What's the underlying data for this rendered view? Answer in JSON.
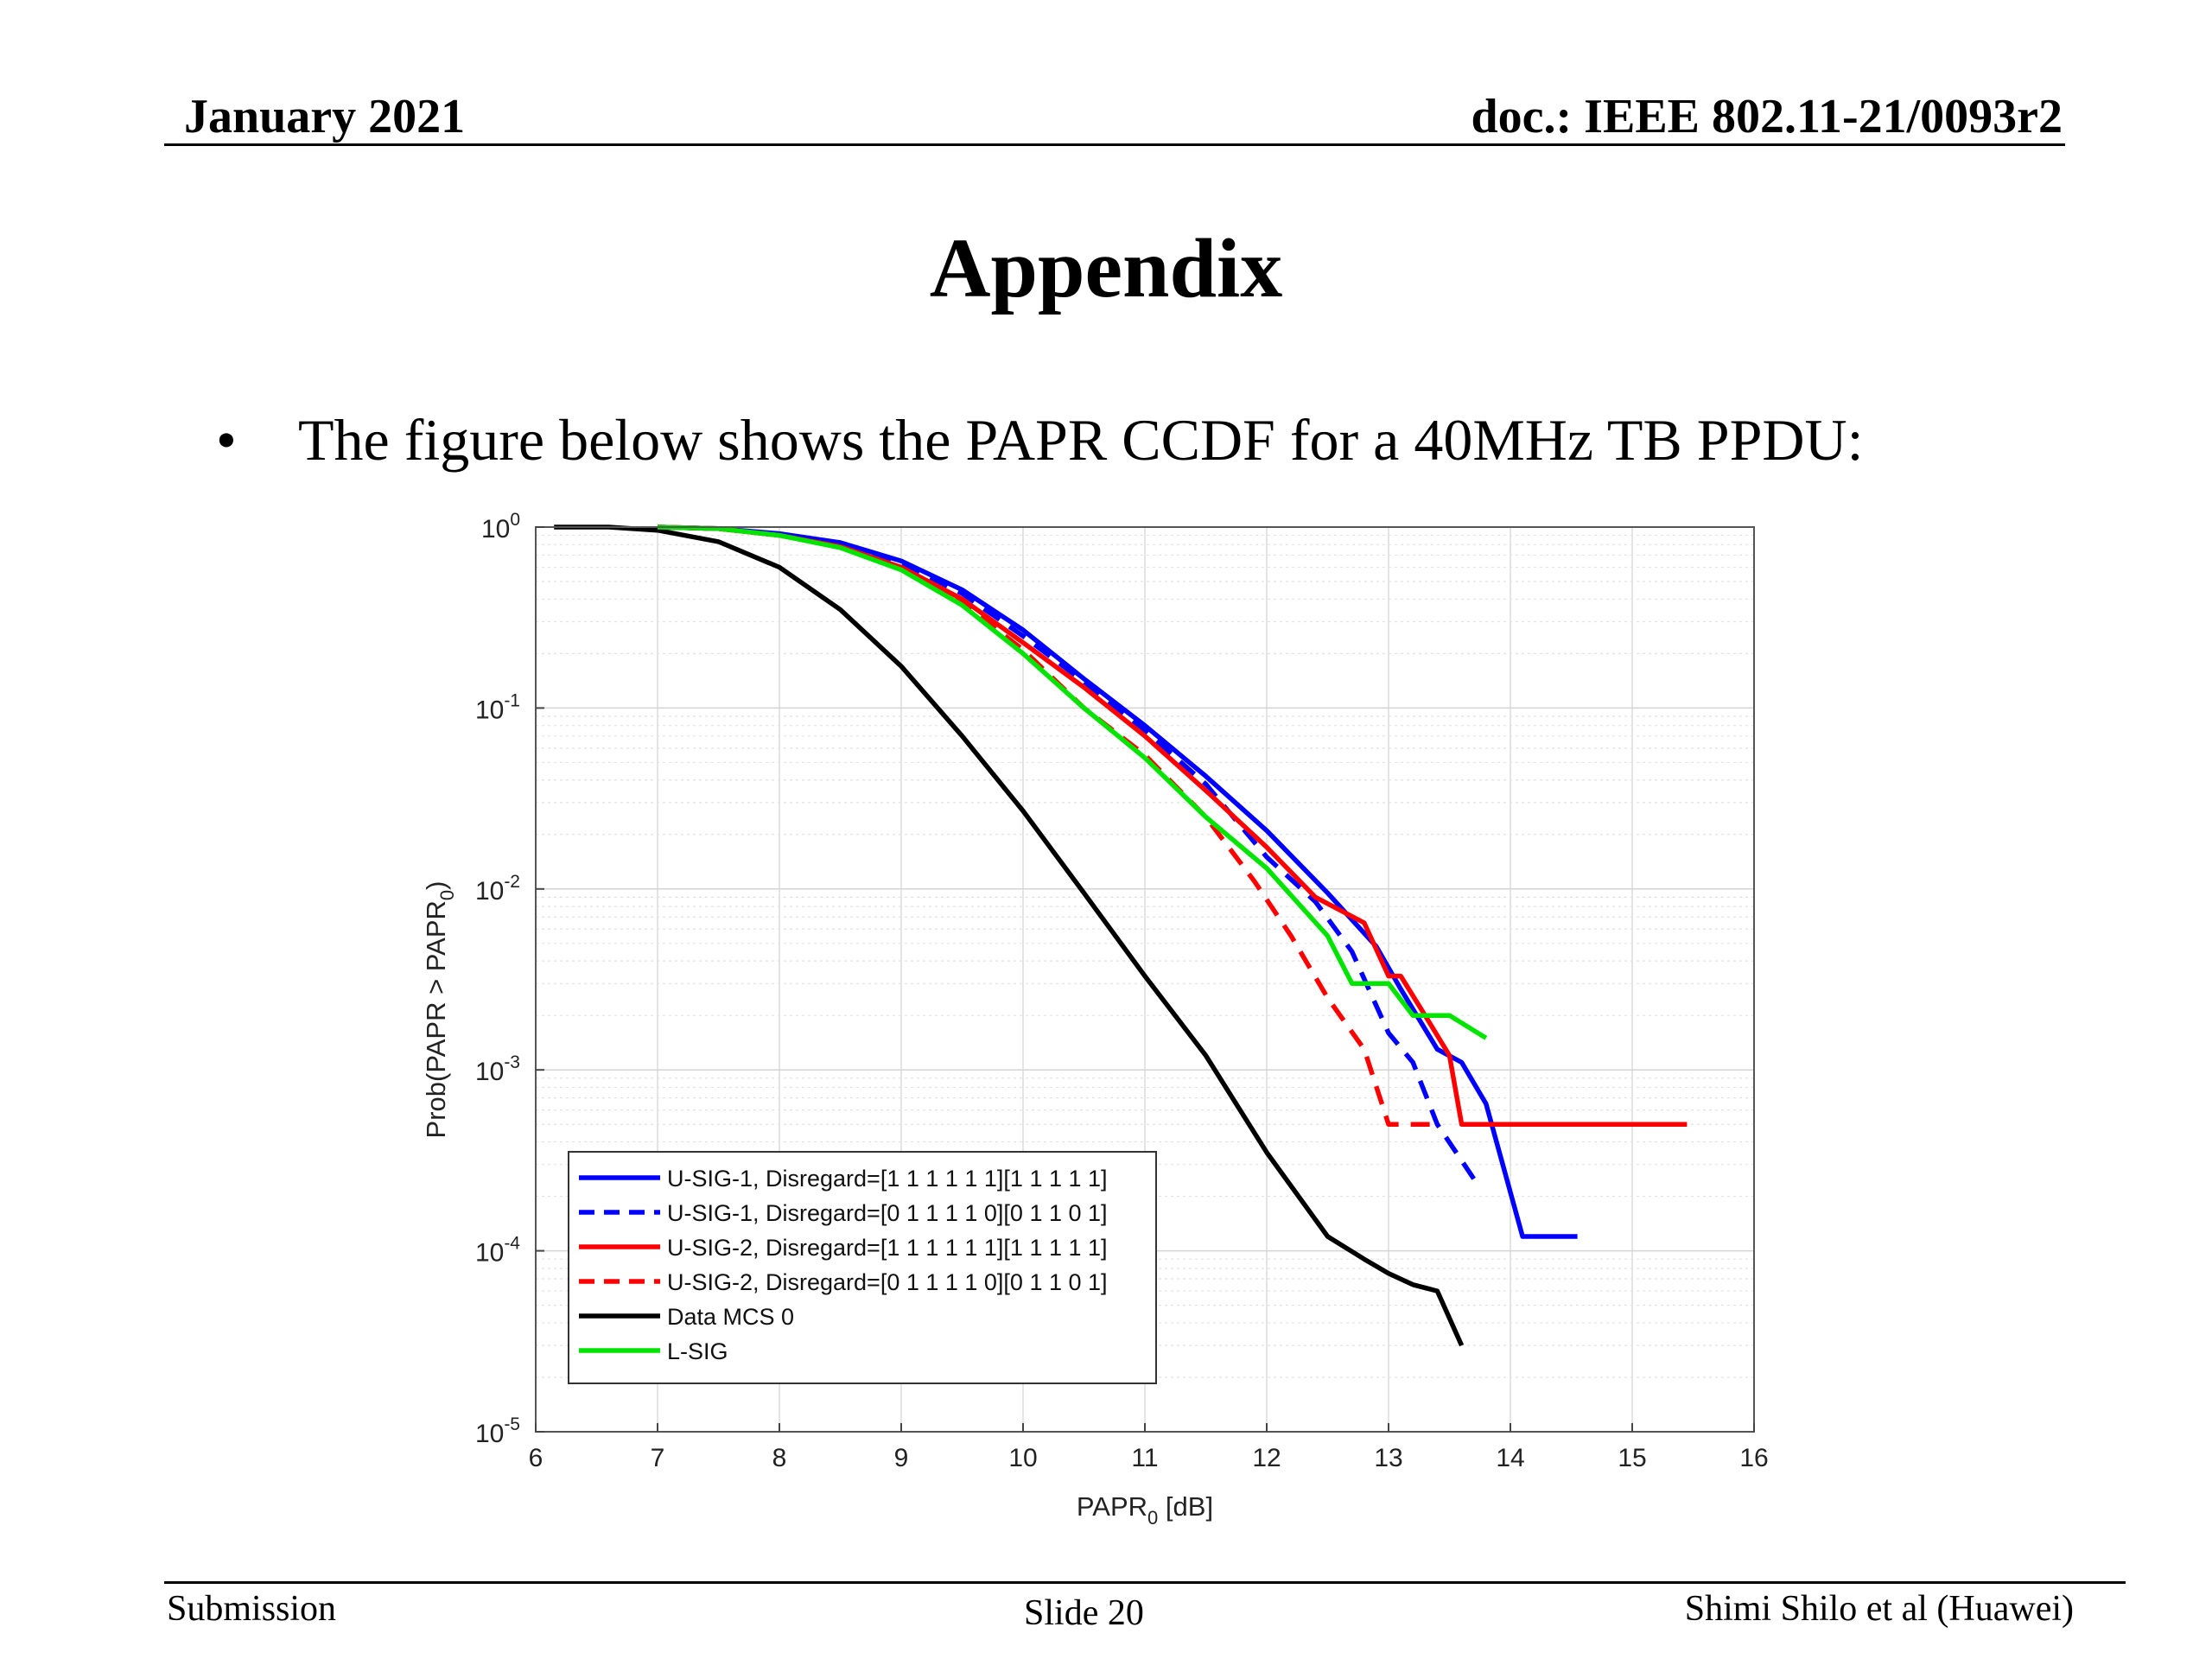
{
  "header": {
    "date": "January 2021",
    "doc": "doc.: IEEE 802.11-21/0093r2"
  },
  "title": "Appendix",
  "bullet": {
    "symbol": "•",
    "text": "The figure below shows the PAPR CCDF for a 40MHz TB PPDU:"
  },
  "footer": {
    "left": "Submission",
    "center": "Slide 20",
    "right": "Shimi Shilo et al (Huawei)"
  },
  "chart_data": {
    "type": "line",
    "xlabel": "PAPR",
    "xlabel_sub": "0",
    "xlabel_unit": " [dB]",
    "ylabel": "Prob(PAPR > PAPR",
    "ylabel_sub": "0",
    "ylabel_close": ")",
    "xlim": [
      6,
      16
    ],
    "ylim": [
      1e-05,
      1
    ],
    "yscale": "log",
    "xticks": [
      6,
      7,
      8,
      9,
      10,
      11,
      12,
      13,
      14,
      15,
      16
    ],
    "yticks": [
      {
        "base": "10",
        "exp": "0",
        "value": 1
      },
      {
        "base": "10",
        "exp": "-1",
        "value": 0.1
      },
      {
        "base": "10",
        "exp": "-2",
        "value": 0.01
      },
      {
        "base": "10",
        "exp": "-3",
        "value": 0.001
      },
      {
        "base": "10",
        "exp": "-4",
        "value": 0.0001
      },
      {
        "base": "10",
        "exp": "-5",
        "value": 1e-05
      }
    ],
    "grid": true,
    "legend_position": "bottom-left",
    "series": [
      {
        "name": "U-SIG-1, Disregard=[1 1 1 1 1 1][1 1 1 1 1]",
        "color": "#0000ff",
        "dash": "solid",
        "x": [
          7.0,
          7.5,
          8.0,
          8.5,
          9.0,
          9.5,
          10.0,
          10.5,
          11.0,
          11.5,
          12.0,
          12.5,
          12.9,
          13.1,
          13.4,
          13.6,
          13.8,
          14.1,
          14.55
        ],
        "y": [
          1.0,
          0.98,
          0.92,
          0.82,
          0.65,
          0.45,
          0.27,
          0.145,
          0.08,
          0.042,
          0.021,
          0.0095,
          0.0048,
          0.0028,
          0.0013,
          0.0011,
          0.00065,
          0.00012,
          0.00012
        ]
      },
      {
        "name": "U-SIG-1, Disregard=[0 1 1 1 1 0][0 1 1 0 1]",
        "color": "#0000ff",
        "dash": "dashed",
        "x": [
          7.0,
          7.5,
          8.0,
          8.5,
          9.0,
          9.5,
          10.0,
          10.5,
          11.0,
          11.5,
          12.0,
          12.4,
          12.7,
          13.0,
          13.2,
          13.4,
          13.7
        ],
        "y": [
          1.0,
          0.98,
          0.91,
          0.8,
          0.63,
          0.43,
          0.25,
          0.14,
          0.075,
          0.038,
          0.015,
          0.0085,
          0.0045,
          0.0016,
          0.0011,
          0.0005,
          0.00025
        ]
      },
      {
        "name": "U-SIG-2, Disregard=[1 1 1 1 1 1][1 1 1 1 1]",
        "color": "#ff0000",
        "dash": "solid",
        "x": [
          7.0,
          7.5,
          8.0,
          8.5,
          9.0,
          9.5,
          10.0,
          10.5,
          11.0,
          11.5,
          12.0,
          12.4,
          12.8,
          13.0,
          13.1,
          13.3,
          13.5,
          13.6,
          15.45
        ],
        "y": [
          1.0,
          0.98,
          0.9,
          0.78,
          0.6,
          0.4,
          0.23,
          0.13,
          0.07,
          0.035,
          0.017,
          0.009,
          0.0065,
          0.0033,
          0.0033,
          0.002,
          0.0012,
          0.0005,
          0.0005
        ]
      },
      {
        "name": "U-SIG-2, Disregard=[0 1 1 1 1 0][0 1 1 0 1]",
        "color": "#ff0000",
        "dash": "dashed",
        "x": [
          7.0,
          7.5,
          8.0,
          8.5,
          9.0,
          9.5,
          10.0,
          10.5,
          11.0,
          11.5,
          11.9,
          12.2,
          12.5,
          12.8,
          13.0,
          13.2,
          13.4
        ],
        "y": [
          1.0,
          0.98,
          0.9,
          0.78,
          0.6,
          0.38,
          0.21,
          0.1,
          0.055,
          0.025,
          0.011,
          0.0055,
          0.0025,
          0.0013,
          0.0005,
          0.0005,
          0.0005
        ]
      },
      {
        "name": "Data MCS 0",
        "color": "#000000",
        "dash": "solid",
        "x": [
          6.15,
          6.6,
          7.0,
          7.5,
          8.0,
          8.5,
          9.0,
          9.5,
          10.0,
          10.5,
          11.0,
          11.5,
          12.0,
          12.5,
          12.8,
          13.0,
          13.2,
          13.4,
          13.6
        ],
        "y": [
          1.0,
          1.0,
          0.96,
          0.83,
          0.6,
          0.35,
          0.17,
          0.07,
          0.027,
          0.0095,
          0.0033,
          0.0012,
          0.00035,
          0.00012,
          9e-05,
          7.5e-05,
          6.5e-05,
          6e-05,
          3e-05
        ]
      },
      {
        "name": "L-SIG",
        "color": "#00e400",
        "dash": "solid",
        "x": [
          7.0,
          7.5,
          8.0,
          8.5,
          9.0,
          9.5,
          10.0,
          10.5,
          11.0,
          11.5,
          12.0,
          12.5,
          12.7,
          13.0,
          13.2,
          13.5,
          13.8
        ],
        "y": [
          1.0,
          0.98,
          0.9,
          0.77,
          0.58,
          0.37,
          0.2,
          0.1,
          0.053,
          0.025,
          0.013,
          0.0055,
          0.003,
          0.003,
          0.002,
          0.002,
          0.0015
        ]
      }
    ]
  }
}
